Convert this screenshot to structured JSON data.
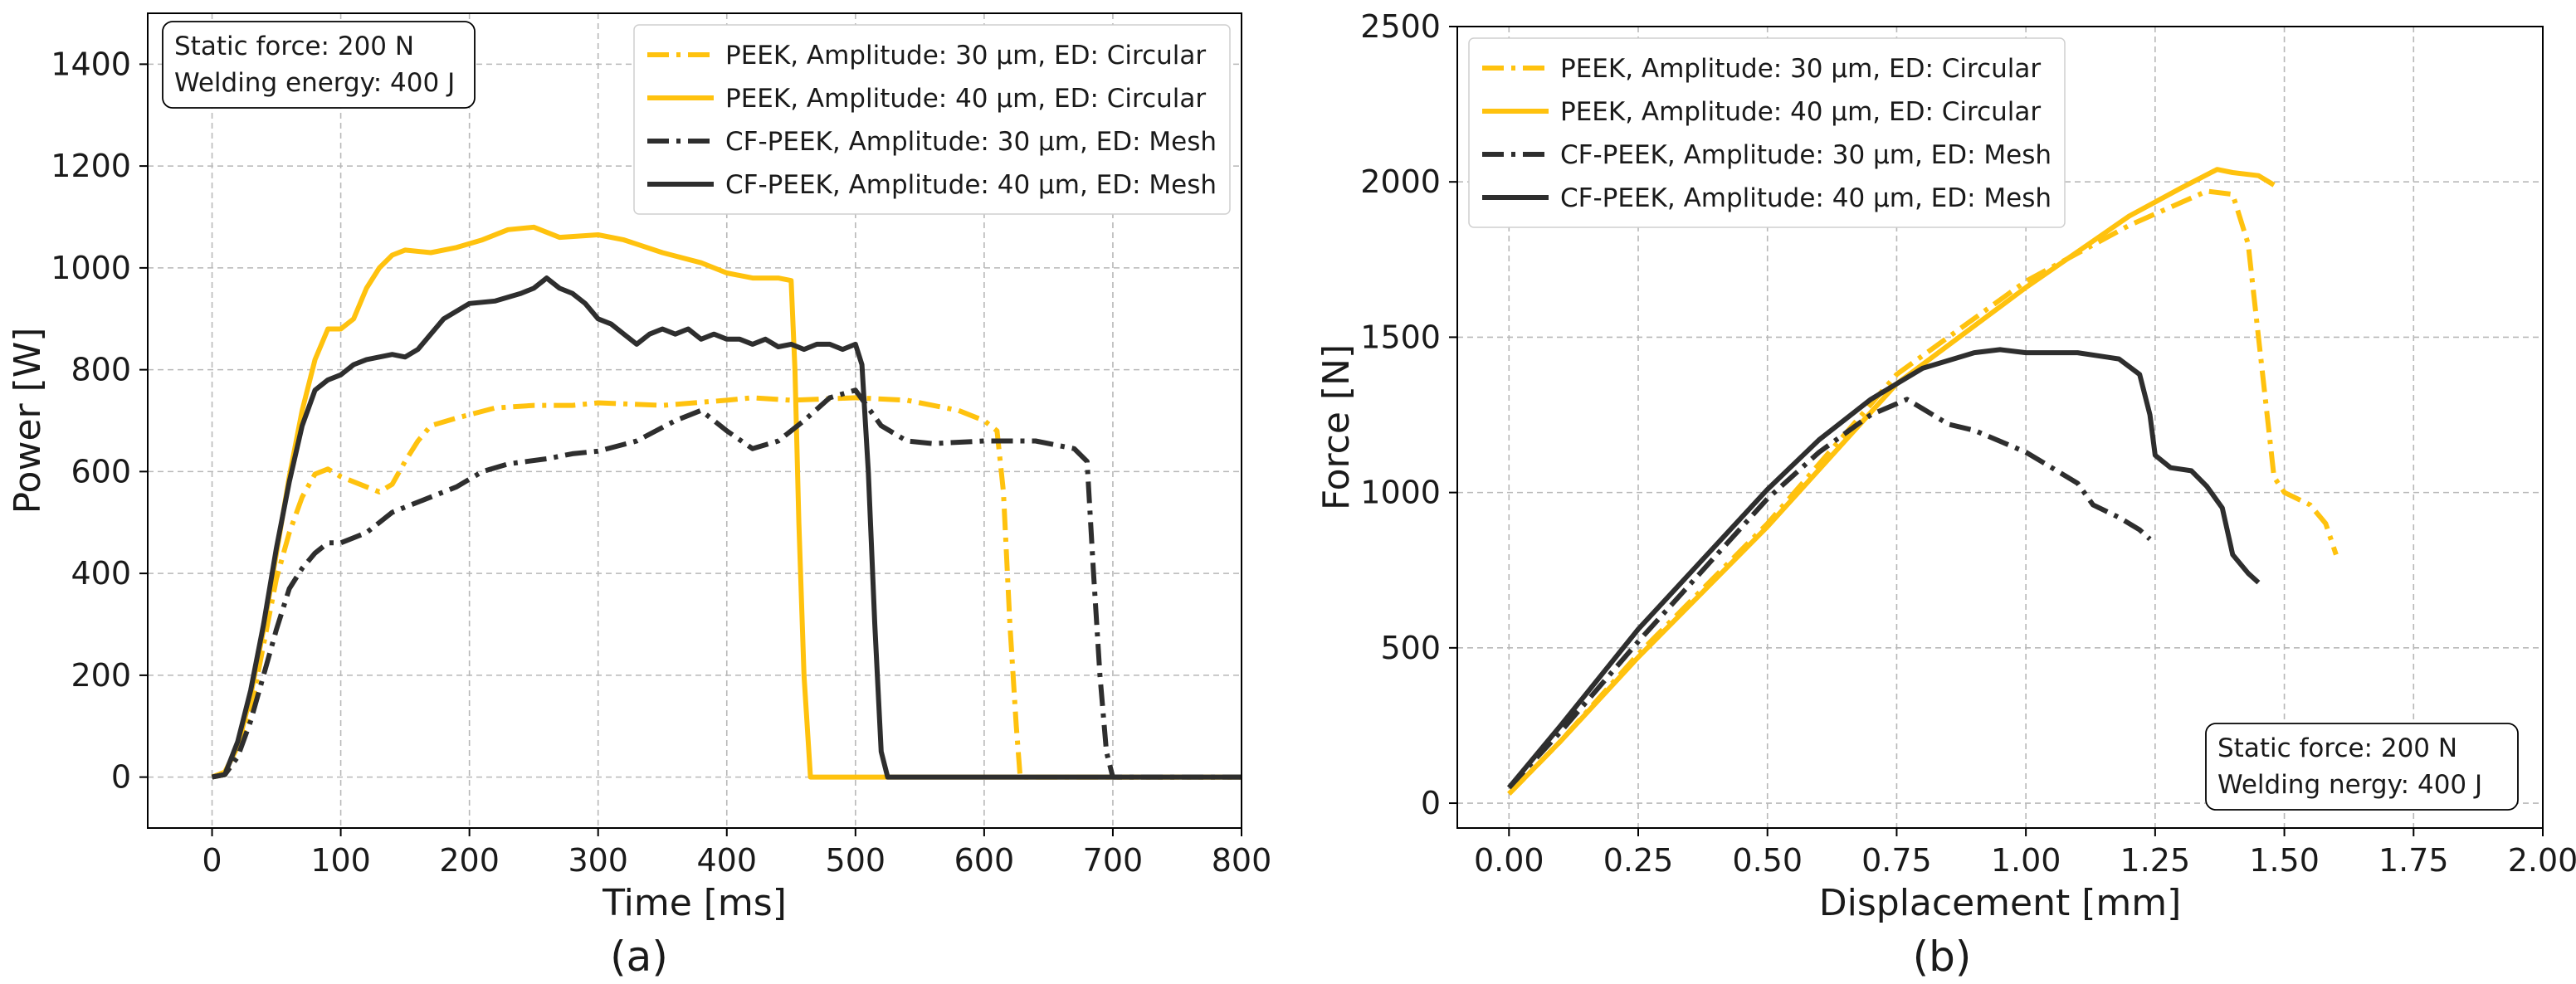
{
  "colors": {
    "peek": "#FFC20E",
    "cfpeek": "#2E2E2E"
  },
  "chart_data": [
    {
      "id": "a",
      "type": "line",
      "caption": "(a)",
      "xlabel": "Time [ms]",
      "ylabel": "Power [W]",
      "xlim": [
        -50,
        800
      ],
      "ylim": [
        -100,
        1500
      ],
      "xticks": [
        0,
        100,
        200,
        300,
        400,
        500,
        600,
        700,
        800
      ],
      "yticks": [
        0,
        200,
        400,
        600,
        800,
        1000,
        1200,
        1400
      ],
      "grid": true,
      "legend_position": "top-right",
      "annotation": {
        "position": "top-left",
        "lines": [
          "Static force: 200 N",
          "Welding energy: 400 J"
        ]
      },
      "series": [
        {
          "name": "PEEK, Amplitude: 30 μm, ED: Circular",
          "color_key": "peek",
          "dash": "dashdot",
          "points": [
            [
              0,
              0
            ],
            [
              10,
              5
            ],
            [
              20,
              50
            ],
            [
              30,
              130
            ],
            [
              40,
              260
            ],
            [
              50,
              390
            ],
            [
              60,
              480
            ],
            [
              70,
              550
            ],
            [
              80,
              595
            ],
            [
              90,
              605
            ],
            [
              100,
              590
            ],
            [
              110,
              580
            ],
            [
              120,
              570
            ],
            [
              130,
              560
            ],
            [
              140,
              575
            ],
            [
              150,
              620
            ],
            [
              160,
              660
            ],
            [
              170,
              690
            ],
            [
              190,
              705
            ],
            [
              220,
              725
            ],
            [
              250,
              730
            ],
            [
              280,
              730
            ],
            [
              300,
              735
            ],
            [
              350,
              730
            ],
            [
              400,
              740
            ],
            [
              420,
              745
            ],
            [
              450,
              740
            ],
            [
              500,
              745
            ],
            [
              540,
              740
            ],
            [
              580,
              720
            ],
            [
              600,
              700
            ],
            [
              610,
              680
            ],
            [
              615,
              560
            ],
            [
              620,
              300
            ],
            [
              625,
              100
            ],
            [
              628,
              0
            ],
            [
              800,
              0
            ]
          ]
        },
        {
          "name": "PEEK, Amplitude: 40 μm, ED: Circular",
          "color_key": "peek",
          "dash": "solid",
          "points": [
            [
              0,
              0
            ],
            [
              10,
              10
            ],
            [
              20,
              60
            ],
            [
              30,
              160
            ],
            [
              40,
              290
            ],
            [
              50,
              440
            ],
            [
              60,
              590
            ],
            [
              70,
              720
            ],
            [
              80,
              820
            ],
            [
              90,
              880
            ],
            [
              100,
              880
            ],
            [
              110,
              900
            ],
            [
              120,
              960
            ],
            [
              130,
              1000
            ],
            [
              140,
              1025
            ],
            [
              150,
              1035
            ],
            [
              170,
              1030
            ],
            [
              190,
              1040
            ],
            [
              210,
              1055
            ],
            [
              230,
              1075
            ],
            [
              250,
              1080
            ],
            [
              270,
              1060
            ],
            [
              300,
              1065
            ],
            [
              320,
              1055
            ],
            [
              350,
              1030
            ],
            [
              380,
              1010
            ],
            [
              400,
              990
            ],
            [
              420,
              980
            ],
            [
              440,
              980
            ],
            [
              450,
              975
            ],
            [
              453,
              800
            ],
            [
              456,
              500
            ],
            [
              460,
              200
            ],
            [
              465,
              0
            ],
            [
              800,
              0
            ]
          ]
        },
        {
          "name": "CF-PEEK, Amplitude: 30 μm, ED: Mesh",
          "color_key": "cfpeek",
          "dash": "dashdot",
          "points": [
            [
              0,
              0
            ],
            [
              10,
              5
            ],
            [
              20,
              40
            ],
            [
              30,
              110
            ],
            [
              40,
              200
            ],
            [
              50,
              290
            ],
            [
              60,
              370
            ],
            [
              70,
              410
            ],
            [
              80,
              440
            ],
            [
              90,
              460
            ],
            [
              100,
              460
            ],
            [
              110,
              470
            ],
            [
              120,
              480
            ],
            [
              130,
              500
            ],
            [
              140,
              520
            ],
            [
              150,
              530
            ],
            [
              170,
              550
            ],
            [
              190,
              570
            ],
            [
              210,
              600
            ],
            [
              230,
              615
            ],
            [
              260,
              625
            ],
            [
              280,
              635
            ],
            [
              300,
              640
            ],
            [
              330,
              660
            ],
            [
              360,
              700
            ],
            [
              380,
              720
            ],
            [
              400,
              680
            ],
            [
              420,
              645
            ],
            [
              440,
              660
            ],
            [
              460,
              700
            ],
            [
              480,
              745
            ],
            [
              500,
              760
            ],
            [
              520,
              690
            ],
            [
              540,
              660
            ],
            [
              560,
              655
            ],
            [
              600,
              660
            ],
            [
              640,
              660
            ],
            [
              670,
              645
            ],
            [
              680,
              620
            ],
            [
              685,
              400
            ],
            [
              690,
              200
            ],
            [
              695,
              50
            ],
            [
              700,
              0
            ],
            [
              800,
              0
            ]
          ]
        },
        {
          "name": "CF-PEEK, Amplitude: 40 μm, ED: Mesh",
          "color_key": "cfpeek",
          "dash": "solid",
          "points": [
            [
              0,
              0
            ],
            [
              10,
              5
            ],
            [
              20,
              70
            ],
            [
              30,
              170
            ],
            [
              40,
              300
            ],
            [
              50,
              450
            ],
            [
              60,
              580
            ],
            [
              70,
              690
            ],
            [
              80,
              760
            ],
            [
              90,
              780
            ],
            [
              100,
              790
            ],
            [
              110,
              810
            ],
            [
              120,
              820
            ],
            [
              140,
              830
            ],
            [
              150,
              825
            ],
            [
              160,
              840
            ],
            [
              170,
              870
            ],
            [
              180,
              900
            ],
            [
              200,
              930
            ],
            [
              220,
              935
            ],
            [
              240,
              950
            ],
            [
              250,
              960
            ],
            [
              260,
              980
            ],
            [
              270,
              960
            ],
            [
              280,
              950
            ],
            [
              290,
              930
            ],
            [
              300,
              900
            ],
            [
              310,
              890
            ],
            [
              320,
              870
            ],
            [
              330,
              850
            ],
            [
              340,
              870
            ],
            [
              350,
              880
            ],
            [
              360,
              870
            ],
            [
              370,
              880
            ],
            [
              380,
              860
            ],
            [
              390,
              870
            ],
            [
              400,
              860
            ],
            [
              410,
              860
            ],
            [
              420,
              850
            ],
            [
              430,
              860
            ],
            [
              440,
              845
            ],
            [
              450,
              850
            ],
            [
              460,
              840
            ],
            [
              470,
              850
            ],
            [
              480,
              850
            ],
            [
              490,
              840
            ],
            [
              500,
              850
            ],
            [
              505,
              810
            ],
            [
              510,
              600
            ],
            [
              515,
              300
            ],
            [
              520,
              50
            ],
            [
              525,
              0
            ],
            [
              800,
              0
            ]
          ]
        }
      ]
    },
    {
      "id": "b",
      "type": "line",
      "caption": "(b)",
      "xlabel": "Displacement [mm]",
      "ylabel": "Force [N]",
      "xlim": [
        -0.1,
        2.0
      ],
      "ylim": [
        -80,
        2500
      ],
      "xticks": [
        "0.00",
        "0.25",
        "0.50",
        "0.75",
        "1.00",
        "1.25",
        "1.50",
        "1.75",
        "2.00"
      ],
      "yticks": [
        0,
        500,
        1000,
        1500,
        2000,
        2500
      ],
      "grid": true,
      "legend_position": "top-left",
      "annotation": {
        "position": "bottom-right",
        "lines": [
          "Static force: 200 N",
          "Welding nergy: 400 J"
        ]
      },
      "series": [
        {
          "name": "PEEK, Amplitude: 30 μm, ED: Circular",
          "color_key": "peek",
          "dash": "dashdot",
          "points": [
            [
              0,
              30
            ],
            [
              0.1,
              200
            ],
            [
              0.25,
              480
            ],
            [
              0.5,
              900
            ],
            [
              0.75,
              1380
            ],
            [
              1.0,
              1680
            ],
            [
              1.2,
              1860
            ],
            [
              1.35,
              1970
            ],
            [
              1.4,
              1960
            ],
            [
              1.43,
              1800
            ],
            [
              1.45,
              1500
            ],
            [
              1.47,
              1200
            ],
            [
              1.48,
              1050
            ],
            [
              1.5,
              1000
            ],
            [
              1.55,
              960
            ],
            [
              1.58,
              900
            ],
            [
              1.6,
              800
            ]
          ]
        },
        {
          "name": "PEEK, Amplitude: 40 μm, ED: Circular",
          "color_key": "peek",
          "dash": "solid",
          "points": [
            [
              0,
              30
            ],
            [
              0.1,
              200
            ],
            [
              0.25,
              470
            ],
            [
              0.5,
              890
            ],
            [
              0.75,
              1350
            ],
            [
              1.0,
              1660
            ],
            [
              1.2,
              1890
            ],
            [
              1.3,
              1980
            ],
            [
              1.37,
              2040
            ],
            [
              1.4,
              2030
            ],
            [
              1.45,
              2020
            ],
            [
              1.48,
              1990
            ]
          ]
        },
        {
          "name": "CF-PEEK, Amplitude: 30 μm, ED: Mesh",
          "color_key": "cfpeek",
          "dash": "dashdot",
          "points": [
            [
              0,
              50
            ],
            [
              0.1,
              230
            ],
            [
              0.25,
              520
            ],
            [
              0.5,
              980
            ],
            [
              0.6,
              1130
            ],
            [
              0.7,
              1250
            ],
            [
              0.77,
              1300
            ],
            [
              0.8,
              1270
            ],
            [
              0.85,
              1220
            ],
            [
              0.9,
              1200
            ],
            [
              1.0,
              1130
            ],
            [
              1.05,
              1080
            ],
            [
              1.1,
              1030
            ],
            [
              1.13,
              960
            ],
            [
              1.18,
              920
            ],
            [
              1.22,
              880
            ],
            [
              1.24,
              850
            ]
          ]
        },
        {
          "name": "CF-PEEK, Amplitude: 40 μm, ED: Mesh",
          "color_key": "cfpeek",
          "dash": "solid",
          "points": [
            [
              0,
              50
            ],
            [
              0.1,
              250
            ],
            [
              0.25,
              560
            ],
            [
              0.5,
              1010
            ],
            [
              0.6,
              1170
            ],
            [
              0.7,
              1300
            ],
            [
              0.8,
              1400
            ],
            [
              0.9,
              1450
            ],
            [
              0.95,
              1460
            ],
            [
              1.0,
              1450
            ],
            [
              1.1,
              1450
            ],
            [
              1.18,
              1430
            ],
            [
              1.22,
              1380
            ],
            [
              1.24,
              1250
            ],
            [
              1.25,
              1120
            ],
            [
              1.28,
              1080
            ],
            [
              1.32,
              1070
            ],
            [
              1.35,
              1020
            ],
            [
              1.38,
              950
            ],
            [
              1.4,
              800
            ],
            [
              1.43,
              740
            ],
            [
              1.45,
              710
            ]
          ]
        }
      ]
    }
  ]
}
